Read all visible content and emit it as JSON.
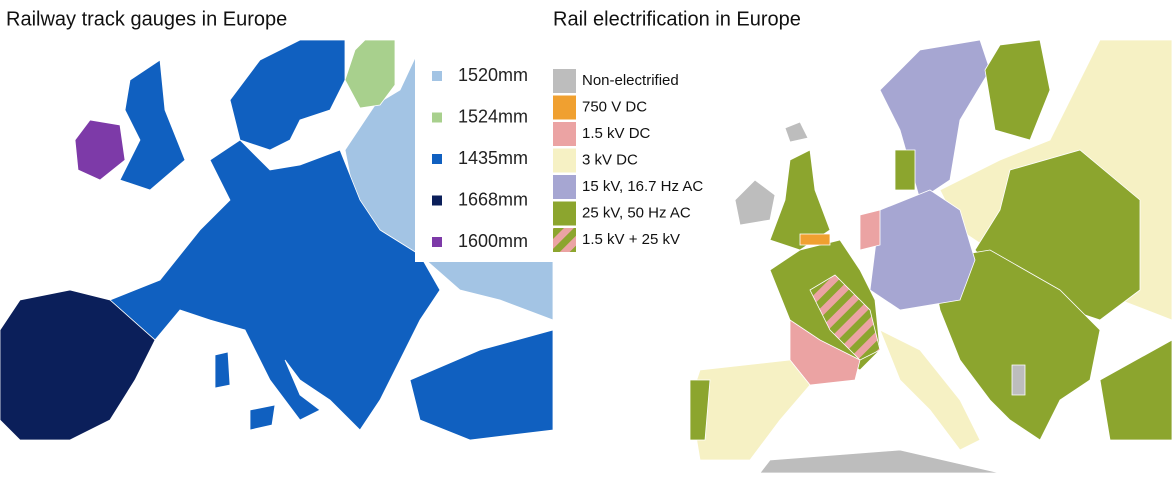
{
  "maps": [
    {
      "title": "Railway track gauges in Europe",
      "legend": [
        {
          "label": "1520mm",
          "color": "#a3c4e4"
        },
        {
          "label": "1524mm",
          "color": "#a8d08d"
        },
        {
          "label": "1435mm",
          "color": "#1060c0"
        },
        {
          "label": "1668mm",
          "color": "#0b1f5a"
        },
        {
          "label": "1600mm",
          "color": "#7d3aa8"
        }
      ]
    },
    {
      "title": "Rail electrification in Europe",
      "legend": [
        {
          "label": "Non-electrified",
          "color": "#bdbdbd"
        },
        {
          "label": "750 V DC",
          "color": "#f0a030"
        },
        {
          "label": "1.5 kV DC",
          "color": "#eba3a3"
        },
        {
          "label": "3 kV DC",
          "color": "#f6f1c4"
        },
        {
          "label": "15 kV, 16.7 Hz AC",
          "color": "#a6a6d2"
        },
        {
          "label": "25 kV, 50 Hz AC",
          "color": "#8ca52e"
        },
        {
          "label": "1.5 kV + 25 kV",
          "colors": [
            "#eba3a3",
            "#8ca52e"
          ]
        }
      ]
    }
  ]
}
